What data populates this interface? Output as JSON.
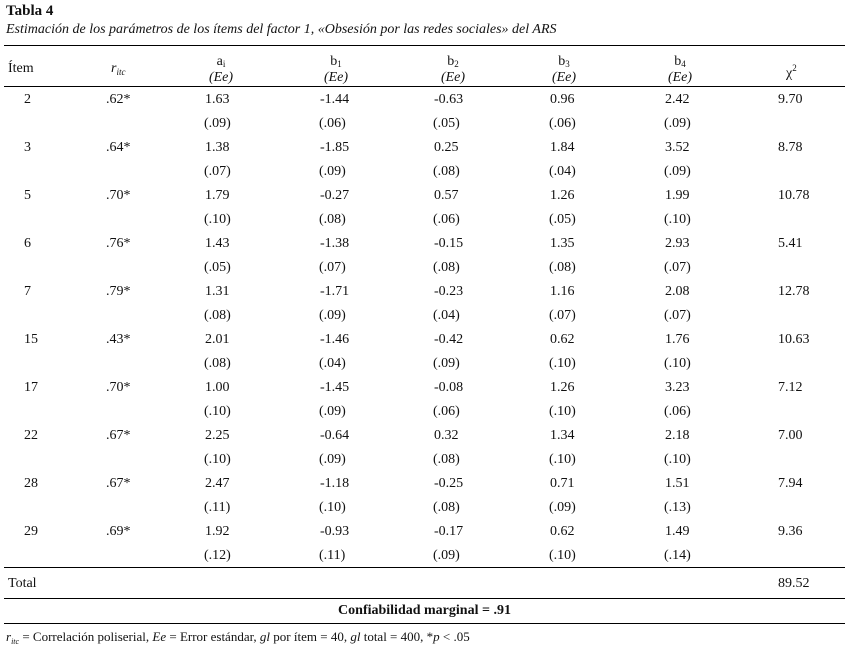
{
  "title": "Tabla 4",
  "caption": "Estimación de los parámetros de los ítems del factor 1, «Obsesión por las redes sociales» del ARS",
  "headers": {
    "item": "Ítem",
    "ritc_symbol": "r",
    "ritc_sub": "itc",
    "a_symbol": "a",
    "a_sub": "i",
    "b1_symbol": "b",
    "b1_sub": "1",
    "b2_symbol": "b",
    "b2_sub": "2",
    "b3_symbol": "b",
    "b3_sub": "3",
    "b4_symbol": "b",
    "b4_sub": "4",
    "ee": "(Ee)",
    "chi_symbol": "χ",
    "chi_sup": "2"
  },
  "rows": [
    {
      "item": "2",
      "ritc": ".62*",
      "a": "1.63",
      "b1": "-1.44",
      "b2": "-0.63",
      "b3": "0.96",
      "b4": "2.42",
      "chi": "9.70",
      "a_se": "(.09)",
      "b1_se": "(.06)",
      "b2_se": "(.05)",
      "b3_se": "(.06)",
      "b4_se": "(.09)"
    },
    {
      "item": "3",
      "ritc": ".64*",
      "a": "1.38",
      "b1": "-1.85",
      "b2": "0.25",
      "b3": "1.84",
      "b4": "3.52",
      "chi": "8.78",
      "a_se": "(.07)",
      "b1_se": "(.09)",
      "b2_se": "(.08)",
      "b3_se": "(.04)",
      "b4_se": "(.09)"
    },
    {
      "item": "5",
      "ritc": ".70*",
      "a": "1.79",
      "b1": "-0.27",
      "b2": "0.57",
      "b3": "1.26",
      "b4": "1.99",
      "chi": "10.78",
      "a_se": "(.10)",
      "b1_se": "(.08)",
      "b2_se": "(.06)",
      "b3_se": "(.05)",
      "b4_se": "(.10)"
    },
    {
      "item": "6",
      "ritc": ".76*",
      "a": "1.43",
      "b1": "-1.38",
      "b2": "-0.15",
      "b3": "1.35",
      "b4": "2.93",
      "chi": "5.41",
      "a_se": "(.05)",
      "b1_se": "(.07)",
      "b2_se": "(.08)",
      "b3_se": "(.08)",
      "b4_se": "(.07)"
    },
    {
      "item": "7",
      "ritc": ".79*",
      "a": "1.31",
      "b1": "-1.71",
      "b2": "-0.23",
      "b3": "1.16",
      "b4": "2.08",
      "chi": "12.78",
      "a_se": "(.08)",
      "b1_se": "(.09)",
      "b2_se": "(.04)",
      "b3_se": "(.07)",
      "b4_se": "(.07)"
    },
    {
      "item": "15",
      "ritc": ".43*",
      "a": "2.01",
      "b1": "-1.46",
      "b2": "-0.42",
      "b3": "0.62",
      "b4": "1.76",
      "chi": "10.63",
      "a_se": "(.08)",
      "b1_se": "(.04)",
      "b2_se": "(.09)",
      "b3_se": "(.10)",
      "b4_se": "(.10)"
    },
    {
      "item": "17",
      "ritc": ".70*",
      "a": "1.00",
      "b1": "-1.45",
      "b2": "-0.08",
      "b3": "1.26",
      "b4": "3.23",
      "chi": "7.12",
      "a_se": "(.10)",
      "b1_se": "(.09)",
      "b2_se": "(.06)",
      "b3_se": "(.10)",
      "b4_se": "(.06)"
    },
    {
      "item": "22",
      "ritc": ".67*",
      "a": "2.25",
      "b1": "-0.64",
      "b2": "0.32",
      "b3": "1.34",
      "b4": "2.18",
      "chi": "7.00",
      "a_se": "(.10)",
      "b1_se": "(.09)",
      "b2_se": "(.08)",
      "b3_se": "(.10)",
      "b4_se": "(.10)"
    },
    {
      "item": "28",
      "ritc": ".67*",
      "a": "2.47",
      "b1": "-1.18",
      "b2": "-0.25",
      "b3": "0.71",
      "b4": "1.51",
      "chi": "7.94",
      "a_se": "(.11)",
      "b1_se": "(.10)",
      "b2_se": "(.08)",
      "b3_se": "(.09)",
      "b4_se": "(.13)"
    },
    {
      "item": "29",
      "ritc": ".69*",
      "a": "1.92",
      "b1": "-0.93",
      "b2": "-0.17",
      "b3": "0.62",
      "b4": "1.49",
      "chi": "9.36",
      "a_se": "(.12)",
      "b1_se": "(.11)",
      "b2_se": "(.09)",
      "b3_se": "(.10)",
      "b4_se": "(.14)"
    }
  ],
  "total": {
    "label": "Total",
    "chi": "89.52"
  },
  "reliability": "Confiabilidad marginal = .91",
  "note": {
    "r": "r",
    "r_sub": "itc",
    "part1": " = Correlación poliserial, ",
    "ee": "Ee",
    "part2": " = Error estándar, ",
    "gl1": "gl",
    "part3": " por ítem = 40, ",
    "gl2": "gl",
    "part4": " total = 400,   *",
    "p": "p",
    "part5": " < .05"
  }
}
